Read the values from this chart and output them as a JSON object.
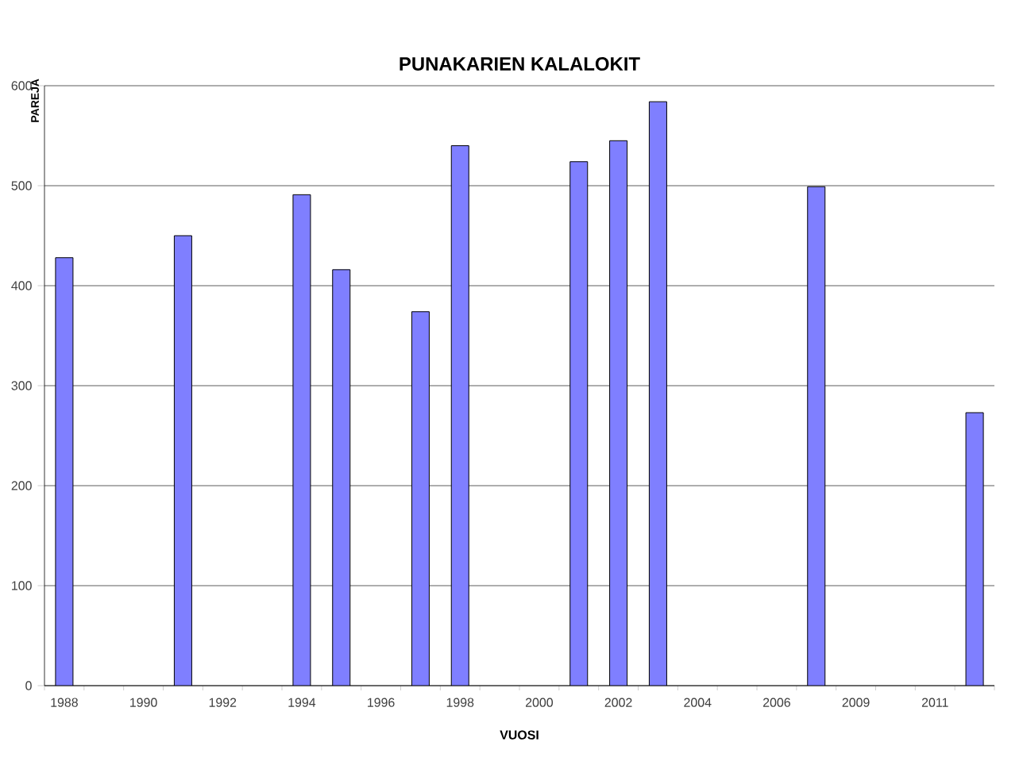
{
  "chart_data": {
    "type": "bar",
    "title": "PUNAKARIEN KALALOKIT",
    "xlabel": "VUOSI",
    "ylabel": "PAREJA",
    "categories": [
      "1988",
      null,
      "1990",
      null,
      "1992",
      null,
      "1994",
      null,
      "1996",
      null,
      "1998",
      null,
      "2000",
      null,
      "2002",
      null,
      "2004",
      null,
      "2006",
      null,
      "2009",
      null,
      "2011",
      null
    ],
    "values": [
      428,
      null,
      null,
      450,
      null,
      null,
      491,
      416,
      null,
      374,
      540,
      null,
      null,
      524,
      545,
      584,
      null,
      null,
      null,
      499,
      null,
      null,
      null,
      273
    ],
    "color": "#7f7fff",
    "ylim": [
      0,
      600
    ],
    "yticks": [
      0,
      100,
      200,
      300,
      400,
      500,
      600
    ],
    "grid": "y"
  }
}
